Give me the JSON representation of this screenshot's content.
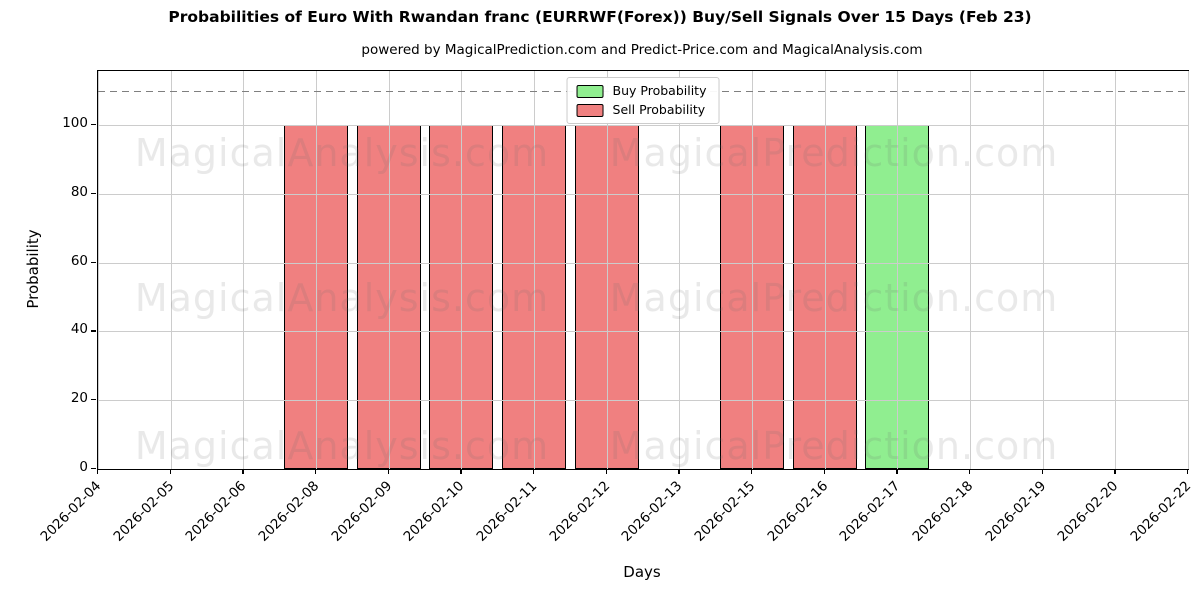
{
  "chart_data": {
    "type": "bar",
    "title": "Probabilities of Euro With Rwandan franc (EURRWF(Forex)) Buy/Sell Signals Over 15 Days (Feb 23)",
    "subtitle": "powered by MagicalPrediction.com and Predict-Price.com and MagicalAnalysis.com",
    "xlabel": "Days",
    "ylabel": "Probability",
    "categories": [
      "2026-02-04",
      "2026-02-05",
      "2026-02-06",
      "2026-02-08",
      "2026-02-09",
      "2026-02-10",
      "2026-02-11",
      "2026-02-12",
      "2026-02-13",
      "2026-02-15",
      "2026-02-16",
      "2026-02-17",
      "2026-02-18",
      "2026-02-19",
      "2026-02-20",
      "2026-02-22"
    ],
    "series": [
      {
        "name": "Buy Probability",
        "color": "#90ee90",
        "edge_color": "#000000",
        "values": [
          0,
          0,
          0,
          0,
          0,
          0,
          0,
          0,
          0,
          0,
          0,
          100,
          0,
          0,
          0,
          0
        ]
      },
      {
        "name": "Sell Probability",
        "color": "#f08080",
        "edge_color": "#000000",
        "values": [
          0,
          0,
          0,
          100,
          100,
          100,
          100,
          100,
          0,
          100,
          100,
          0,
          0,
          0,
          0,
          0
        ]
      }
    ],
    "yticks": [
      0,
      20,
      40,
      60,
      80,
      100
    ],
    "ylim": [
      0,
      115.7
    ],
    "dashed_line_y": 110,
    "dashed_line_color": "#7f7f7f",
    "grid": true,
    "grid_color": "#cccccc",
    "legend_position": "upper center",
    "watermarks": {
      "left": "MagicalAnalysis.com",
      "right": "MagicalPrediction.com"
    }
  }
}
